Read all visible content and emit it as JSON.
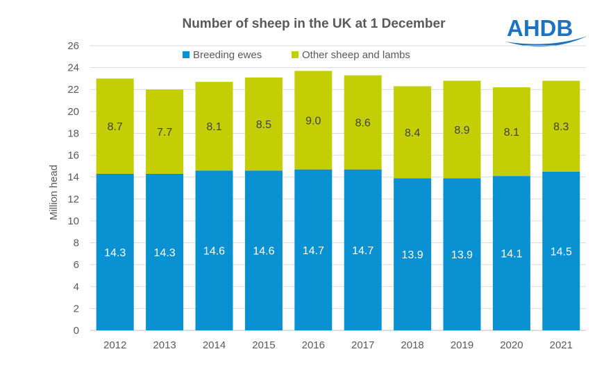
{
  "logo": {
    "text": "AHDB",
    "color": "#1e73be"
  },
  "chart_data": {
    "type": "bar",
    "stacked": true,
    "title": "Number of sheep in the UK at 1 December",
    "ylabel": "Million head",
    "xlabel": "",
    "ylim": [
      0,
      26
    ],
    "yticks": [
      0,
      2,
      4,
      6,
      8,
      10,
      12,
      14,
      16,
      18,
      20,
      22,
      24,
      26
    ],
    "grid": true,
    "legend_position": "top",
    "categories": [
      "2012",
      "2013",
      "2014",
      "2015",
      "2016",
      "2017",
      "2018",
      "2019",
      "2020",
      "2021"
    ],
    "series": [
      {
        "name": "Breeding ewes",
        "color": "#0a91d2",
        "values": [
          14.3,
          14.3,
          14.6,
          14.6,
          14.7,
          14.7,
          13.9,
          13.9,
          14.1,
          14.5
        ],
        "labels": [
          "14.3",
          "14.3",
          "14.6",
          "14.6",
          "14.7",
          "14.7",
          "13.9",
          "13.9",
          "14.1",
          "14.5"
        ]
      },
      {
        "name": "Other sheep and lambs",
        "color": "#c3cf04",
        "values": [
          8.7,
          7.7,
          8.1,
          8.5,
          9.0,
          8.6,
          8.4,
          8.9,
          8.1,
          8.3
        ],
        "labels": [
          "8.7",
          "7.7",
          "8.1",
          "8.5",
          "9.0",
          "8.6",
          "8.4",
          "8.9",
          "8.1",
          "8.3"
        ]
      }
    ]
  }
}
